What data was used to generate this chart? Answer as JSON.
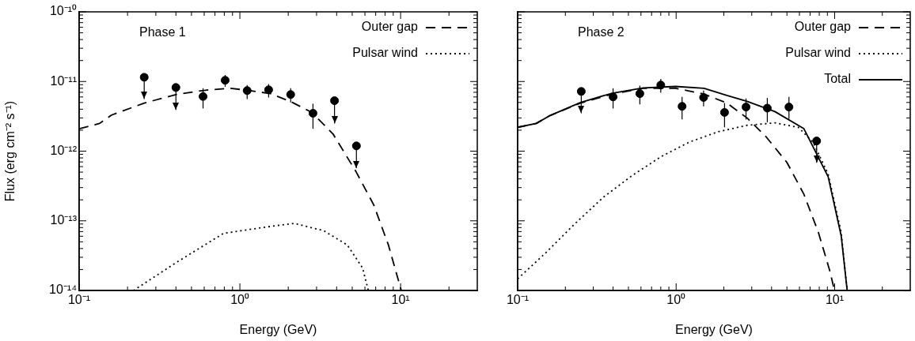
{
  "chart_data": [
    {
      "type": "line",
      "title": "Phase 1",
      "xlabel": "Energy (GeV)",
      "ylabel": "Flux (erg cm⁻² s⁻¹)",
      "log": "xy",
      "legend": "top right",
      "xlim": [
        0.1,
        30
      ],
      "ylim": [
        1e-14,
        1e-10
      ],
      "xticks": [
        {
          "value": 0.1,
          "label": "10⁻¹"
        },
        {
          "value": 0.2,
          "label": null
        },
        {
          "value": 0.3,
          "label": null
        },
        {
          "value": 0.4,
          "label": null
        },
        {
          "value": 0.5,
          "label": null
        },
        {
          "value": 0.6,
          "label": null
        },
        {
          "value": 0.7,
          "label": null
        },
        {
          "value": 0.8,
          "label": null
        },
        {
          "value": 0.9,
          "label": null
        },
        {
          "value": 1,
          "label": "10⁰"
        },
        {
          "value": 2,
          "label": null
        },
        {
          "value": 3,
          "label": null
        },
        {
          "value": 4,
          "label": null
        },
        {
          "value": 5,
          "label": null
        },
        {
          "value": 6,
          "label": null
        },
        {
          "value": 7,
          "label": null
        },
        {
          "value": 8,
          "label": null
        },
        {
          "value": 9,
          "label": null
        },
        {
          "value": 10,
          "label": "10¹"
        },
        {
          "value": 20,
          "label": null
        }
      ],
      "yticks": [
        {
          "value": 1e-14,
          "label": "10⁻¹⁴"
        },
        {
          "value": 2e-14,
          "label": null
        },
        {
          "value": 3e-14,
          "label": null
        },
        {
          "value": 4e-14,
          "label": null
        },
        {
          "value": 5e-14,
          "label": null
        },
        {
          "value": 6e-14,
          "label": null
        },
        {
          "value": 7e-14,
          "label": null
        },
        {
          "value": 8e-14,
          "label": null
        },
        {
          "value": 9e-14,
          "label": null
        },
        {
          "value": 1e-13,
          "label": "10⁻¹³"
        },
        {
          "value": 2e-13,
          "label": null
        },
        {
          "value": 3e-13,
          "label": null
        },
        {
          "value": 4e-13,
          "label": null
        },
        {
          "value": 5e-13,
          "label": null
        },
        {
          "value": 6e-13,
          "label": null
        },
        {
          "value": 7e-13,
          "label": null
        },
        {
          "value": 8e-13,
          "label": null
        },
        {
          "value": 9e-13,
          "label": null
        },
        {
          "value": 1e-12,
          "label": "10⁻¹²"
        },
        {
          "value": 2e-12,
          "label": null
        },
        {
          "value": 3e-12,
          "label": null
        },
        {
          "value": 4e-12,
          "label": null
        },
        {
          "value": 5e-12,
          "label": null
        },
        {
          "value": 6e-12,
          "label": null
        },
        {
          "value": 7e-12,
          "label": null
        },
        {
          "value": 8e-12,
          "label": null
        },
        {
          "value": 9e-12,
          "label": null
        },
        {
          "value": 1e-11,
          "label": "10⁻¹¹"
        },
        {
          "value": 2e-11,
          "label": null
        },
        {
          "value": 3e-11,
          "label": null
        },
        {
          "value": 4e-11,
          "label": null
        },
        {
          "value": 5e-11,
          "label": null
        },
        {
          "value": 6e-11,
          "label": null
        },
        {
          "value": 7e-11,
          "label": null
        },
        {
          "value": 8e-11,
          "label": null
        },
        {
          "value": 9e-11,
          "label": null
        },
        {
          "value": 1e-10,
          "label": "10⁻¹⁰"
        }
      ],
      "series": [
        {
          "name": "Outer gap",
          "type": "line",
          "color": "#000000",
          "line_style": "dashed",
          "marker": "none",
          "x": [
            0.1,
            0.134,
            0.159,
            0.254,
            0.4,
            0.61,
            0.86,
            1.11,
            1.55,
            2.09,
            2.8,
            3.8,
            5.3,
            6.8,
            8.4,
            10.1
          ],
          "values": [
            2.1e-12,
            2.5e-12,
            3.3e-12,
            4.9e-12,
            6.5e-12,
            7.5e-12,
            8e-12,
            7.5e-12,
            6.7e-12,
            5.1e-12,
            3.6e-12,
            1.76e-12,
            5e-13,
            1.7e-13,
            4.5e-14,
            1e-14
          ]
        },
        {
          "name": "Pulsar wind",
          "type": "line",
          "color": "#000000",
          "line_style": "dotted",
          "marker": "none",
          "x": [
            0.218,
            0.4,
            0.79,
            1.43,
            2.18,
            3.33,
            4.66,
            5.8,
            6.3
          ],
          "values": [
            1e-14,
            2.5e-14,
            6.6e-14,
            8.1e-14,
            9.2e-14,
            7.2e-14,
            4.5e-14,
            2.1e-14,
            1e-14
          ]
        },
        {
          "type": "scatter",
          "color": "#000000",
          "marker": "circle",
          "x": [
            0.254,
            0.4,
            0.59,
            0.81,
            1.11,
            1.51,
            2.07,
            2.85,
            3.88,
            5.31
          ],
          "values": [
            1.15e-11,
            8.2e-12,
            6.1e-12,
            1.04e-11,
            7.4e-12,
            7.6e-12,
            6.5e-12,
            3.5e-12,
            5.3e-12,
            1.19e-12
          ],
          "errors": [
            [
              5.6e-12,
              1.15e-11
            ],
            [
              3.9e-12,
              8.2e-12
            ],
            [
              4.1e-12,
              8e-12
            ],
            [
              8.4e-12,
              1.24e-11
            ],
            [
              5.6e-12,
              8.9e-12
            ],
            [
              5.9e-12,
              9.2e-12
            ],
            [
              5e-12,
              8e-12
            ],
            [
              2.1e-12,
              4.8e-12
            ],
            [
              2.5e-12,
              5.3e-12
            ],
            [
              5.7e-13,
              1.19e-12
            ]
          ]
        }
      ]
    },
    {
      "type": "line",
      "title": "Phase 2",
      "xlabel": "Energy (GeV)",
      "log": "xy",
      "legend": "top right",
      "tick_labels": "x",
      "xlim": [
        0.1,
        30
      ],
      "ylim": [
        1e-14,
        1e-10
      ],
      "xticks": [
        {
          "value": 0.1,
          "label": "10⁻¹"
        },
        {
          "value": 0.2,
          "label": null
        },
        {
          "value": 0.3,
          "label": null
        },
        {
          "value": 0.4,
          "label": null
        },
        {
          "value": 0.5,
          "label": null
        },
        {
          "value": 0.6,
          "label": null
        },
        {
          "value": 0.7,
          "label": null
        },
        {
          "value": 0.8,
          "label": null
        },
        {
          "value": 0.9,
          "label": null
        },
        {
          "value": 1,
          "label": "10⁰"
        },
        {
          "value": 2,
          "label": null
        },
        {
          "value": 3,
          "label": null
        },
        {
          "value": 4,
          "label": null
        },
        {
          "value": 5,
          "label": null
        },
        {
          "value": 6,
          "label": null
        },
        {
          "value": 7,
          "label": null
        },
        {
          "value": 8,
          "label": null
        },
        {
          "value": 9,
          "label": null
        },
        {
          "value": 10,
          "label": "10¹"
        },
        {
          "value": 20,
          "label": null
        }
      ],
      "yticks": [
        {
          "value": 1e-14,
          "label": null
        },
        {
          "value": 2e-14,
          "label": null
        },
        {
          "value": 3e-14,
          "label": null
        },
        {
          "value": 4e-14,
          "label": null
        },
        {
          "value": 5e-14,
          "label": null
        },
        {
          "value": 6e-14,
          "label": null
        },
        {
          "value": 7e-14,
          "label": null
        },
        {
          "value": 8e-14,
          "label": null
        },
        {
          "value": 9e-14,
          "label": null
        },
        {
          "value": 1e-13,
          "label": null
        },
        {
          "value": 2e-13,
          "label": null
        },
        {
          "value": 3e-13,
          "label": null
        },
        {
          "value": 4e-13,
          "label": null
        },
        {
          "value": 5e-13,
          "label": null
        },
        {
          "value": 6e-13,
          "label": null
        },
        {
          "value": 7e-13,
          "label": null
        },
        {
          "value": 8e-13,
          "label": null
        },
        {
          "value": 9e-13,
          "label": null
        },
        {
          "value": 1e-12,
          "label": null
        },
        {
          "value": 2e-12,
          "label": null
        },
        {
          "value": 3e-12,
          "label": null
        },
        {
          "value": 4e-12,
          "label": null
        },
        {
          "value": 5e-12,
          "label": null
        },
        {
          "value": 6e-12,
          "label": null
        },
        {
          "value": 7e-12,
          "label": null
        },
        {
          "value": 8e-12,
          "label": null
        },
        {
          "value": 9e-12,
          "label": null
        },
        {
          "value": 1e-11,
          "label": null
        },
        {
          "value": 2e-11,
          "label": null
        },
        {
          "value": 3e-11,
          "label": null
        },
        {
          "value": 4e-11,
          "label": null
        },
        {
          "value": 5e-11,
          "label": null
        },
        {
          "value": 6e-11,
          "label": null
        },
        {
          "value": 7e-11,
          "label": null
        },
        {
          "value": 8e-11,
          "label": null
        },
        {
          "value": 9e-11,
          "label": null
        },
        {
          "value": 1e-10,
          "label": null
        }
      ],
      "series": [
        {
          "name": "Outer gap",
          "type": "line",
          "color": "#000000",
          "line_style": "dashed",
          "marker": "none",
          "x": [
            0.1,
            0.131,
            0.158,
            0.249,
            0.395,
            0.62,
            0.99,
            1.5,
            2.09,
            2.8,
            3.7,
            5.0,
            6.4,
            7.9,
            9.3,
            9.98
          ],
          "values": [
            2.2e-12,
            2.5e-12,
            3.2e-12,
            4.9e-12,
            6.6e-12,
            8e-12,
            8e-12,
            6.6e-12,
            4.9e-12,
            3e-12,
            1.6e-12,
            6.9e-13,
            2.4e-13,
            6.8e-14,
            1.95e-14,
            1e-14
          ]
        },
        {
          "name": "Pulsar wind",
          "type": "line",
          "color": "#000000",
          "line_style": "dotted",
          "marker": "none",
          "x": [
            0.1,
            0.151,
            0.23,
            0.349,
            0.53,
            0.8,
            1.21,
            1.84,
            2.8,
            4.2,
            5.9,
            7.3,
            9.1,
            11.0,
            12.0
          ],
          "values": [
            1.47e-14,
            3.5e-14,
            9.1e-14,
            2.2e-13,
            4.5e-13,
            8.3e-13,
            1.35e-12,
            1.9e-12,
            2.35e-12,
            2.55e-12,
            2.2e-12,
            1.35e-12,
            4.7e-13,
            6.8e-14,
            1e-14
          ]
        },
        {
          "name": "Total",
          "type": "line",
          "color": "#000000",
          "line_style": "solid",
          "marker": "none",
          "x": [
            0.1,
            0.131,
            0.158,
            0.249,
            0.395,
            0.62,
            0.99,
            1.5,
            2.09,
            2.8,
            4.2,
            6.4,
            9.1,
            11.0,
            12.0
          ],
          "values": [
            2.2e-12,
            2.5e-12,
            3.2e-12,
            5e-12,
            6.8e-12,
            8.1e-12,
            8.5e-12,
            8e-12,
            6.3e-12,
            5.2e-12,
            3.7e-12,
            2.1e-12,
            4.3e-13,
            6.1e-14,
            1e-14
          ]
        },
        {
          "type": "scatter",
          "color": "#000000",
          "marker": "circle",
          "x": [
            0.252,
            0.4,
            0.59,
            0.8,
            1.09,
            1.49,
            2.02,
            2.76,
            3.76,
            5.15,
            7.7
          ],
          "values": [
            7.2e-12,
            6e-12,
            6.7e-12,
            8.9e-12,
            4.4e-12,
            5.9e-12,
            3.6e-12,
            4.3e-12,
            4.15e-12,
            4.3e-12,
            1.4e-12
          ],
          "errors": [
            [
              3.5e-12,
              7.2e-12
            ],
            [
              4.1e-12,
              8e-12
            ],
            [
              4.7e-12,
              8.7e-12
            ],
            [
              6.9e-12,
              1.09e-11
            ],
            [
              2.85e-12,
              6e-12
            ],
            [
              4.4e-12,
              7.4e-12
            ],
            [
              2.2e-12,
              4.9e-12
            ],
            [
              2.85e-12,
              5.7e-12
            ],
            [
              2.6e-12,
              5.8e-12
            ],
            [
              2.9e-12,
              6e-12
            ],
            [
              6.8e-13,
              1.4e-12
            ]
          ]
        }
      ]
    }
  ]
}
